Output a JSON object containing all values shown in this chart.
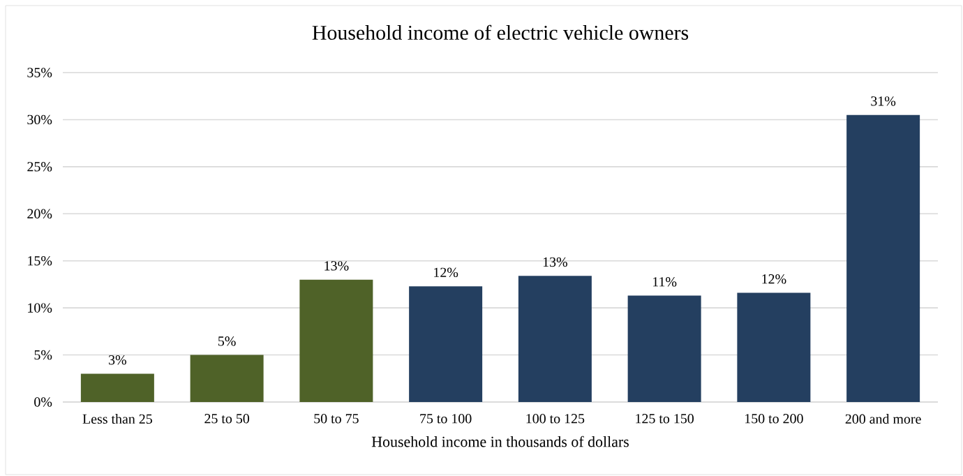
{
  "chart_data": {
    "type": "bar",
    "title": "Household income of electric vehicle owners",
    "xlabel": "Household income in thousands of dollars",
    "categories": [
      "Less than 25",
      "25 to 50",
      "50 to 75",
      "75 to 100",
      "100 to 125",
      "125 to 150",
      "150 to 200",
      "200 and more"
    ],
    "values": [
      3.0,
      5.0,
      13.0,
      12.3,
      13.4,
      11.3,
      11.6,
      30.5
    ],
    "colors": [
      "#4f6228",
      "#4f6228",
      "#4f6228",
      "#243f60",
      "#243f60",
      "#243f60",
      "#243f60",
      "#243f60"
    ],
    "value_labels": [
      "3%",
      "5%",
      "13%",
      "12%",
      "13%",
      "11%",
      "12%",
      "31%"
    ],
    "ylim": [
      0,
      35
    ],
    "yticks": [
      {
        "value": 0,
        "label": "0%"
      },
      {
        "value": 5,
        "label": "5%"
      },
      {
        "value": 10,
        "label": "10%"
      },
      {
        "value": 15,
        "label": "15%"
      },
      {
        "value": 20,
        "label": "20%"
      },
      {
        "value": 25,
        "label": "25%"
      },
      {
        "value": 30,
        "label": "30%"
      },
      {
        "value": 35,
        "label": "35%"
      }
    ],
    "grid": "y"
  }
}
